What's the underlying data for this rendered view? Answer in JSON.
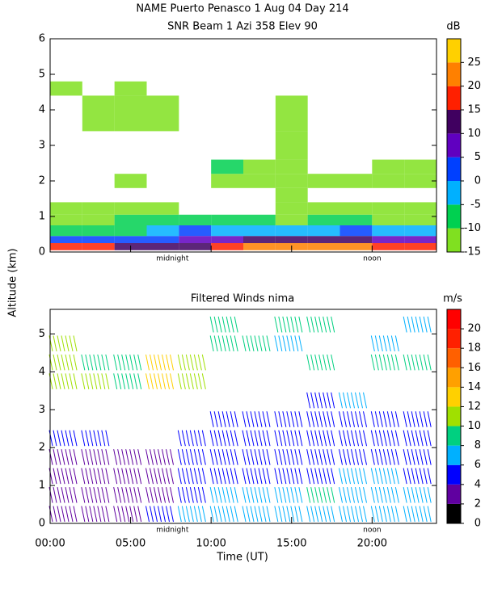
{
  "chart_data": [
    {
      "type": "heatmap",
      "title": "NAME Puerto Penasco    1 Aug 04 Day 214",
      "subtitle": "SNR Beam 1 Azi 358 Elev 90",
      "ylabel": "Altitude (km)",
      "colorbar_label": "dB",
      "xlim": [
        0,
        24
      ],
      "xticks": [
        0,
        5,
        10,
        15,
        20
      ],
      "ylim": [
        0,
        6
      ],
      "yticks": [
        0,
        1,
        2,
        3,
        4,
        5,
        6
      ],
      "annotations": [
        {
          "x": 7.6,
          "text": "midnight"
        },
        {
          "x": 20,
          "text": "noon"
        }
      ],
      "xbins": [
        0,
        2,
        4,
        6,
        8,
        10,
        12,
        14,
        16,
        18,
        20,
        22,
        24
      ],
      "ybins": [
        0.05,
        0.25,
        0.45,
        0.75,
        1.05,
        1.4,
        1.8,
        2.2,
        2.6,
        3.4,
        4.4,
        4.8
      ],
      "values": [
        [
          17,
          15,
          12,
          10,
          14,
          18,
          20,
          20,
          22,
          22,
          18,
          15
        ],
        [
          3,
          3,
          2,
          4,
          5,
          8,
          10,
          10,
          12,
          12,
          8,
          6
        ],
        [
          -8,
          -8,
          -6,
          -5,
          0,
          -2,
          -5,
          -5,
          -2,
          0,
          -3,
          -5
        ],
        [
          -12,
          -12,
          -10,
          -8,
          -10,
          -10,
          -10,
          -12,
          -10,
          -10,
          -12,
          -12
        ],
        [
          -12,
          -12,
          -14,
          -14,
          null,
          null,
          null,
          -14,
          -13,
          -13,
          -14,
          -14
        ],
        [
          null,
          null,
          null,
          null,
          null,
          null,
          null,
          -14,
          null,
          null,
          null,
          null
        ],
        [
          null,
          null,
          -13,
          null,
          null,
          -12,
          -13,
          -12,
          -12,
          -13,
          -12,
          -13
        ],
        [
          null,
          null,
          null,
          null,
          null,
          -8,
          -11,
          -12,
          null,
          null,
          -13,
          -13
        ],
        [
          null,
          null,
          null,
          null,
          null,
          null,
          null,
          -14,
          null,
          null,
          null,
          null
        ],
        [
          null,
          -13,
          -13,
          -12,
          null,
          null,
          null,
          -13,
          null,
          null,
          null,
          null
        ],
        [
          -12,
          null,
          -14,
          null,
          null,
          null,
          null,
          null,
          null,
          null,
          null,
          null
        ]
      ],
      "colorbar_lim": [
        -15,
        30
      ],
      "colorbar_ticks": [
        -15,
        -10,
        -5,
        0,
        5,
        10,
        15,
        20,
        25
      ],
      "colors": [
        "#80e020",
        "#00d050",
        "#00b0ff",
        "#0040ff",
        "#6000c0",
        "#400060",
        "#ff2000",
        "#ff8000",
        "#ffd000"
      ]
    },
    {
      "type": "barbs",
      "title": "Filtered Winds nima",
      "xlabel": "Time (UT)",
      "colorbar_label": "m/s",
      "xlim": [
        0,
        24
      ],
      "xticks": [
        {
          "value": 0,
          "label": "00:00"
        },
        {
          "value": 5,
          "label": "05:00"
        },
        {
          "value": 10,
          "label": "10:00"
        },
        {
          "value": 15,
          "label": "15:00"
        },
        {
          "value": 20,
          "label": "20:00"
        }
      ],
      "ylim": [
        0,
        5.65
      ],
      "yticks": [
        0,
        1,
        2,
        3,
        4,
        5
      ],
      "annotations": [
        {
          "x": 7.6,
          "text": "midnight"
        },
        {
          "x": 20,
          "text": "noon"
        }
      ],
      "xbins": [
        0,
        2,
        4,
        6,
        8,
        10,
        12,
        14,
        16,
        18,
        20,
        22,
        24
      ],
      "ybins": [
        0,
        0.5,
        1,
        1.5,
        2,
        2.5,
        3,
        3.5,
        4,
        4.5,
        5,
        5.5
      ],
      "values": [
        [
          3,
          3,
          3,
          4,
          6,
          7,
          7,
          7,
          7,
          7,
          6,
          6
        ],
        [
          3,
          3,
          3,
          3,
          5,
          6,
          6,
          7,
          8,
          7,
          6,
          6
        ],
        [
          3,
          3,
          3,
          3,
          4,
          5,
          5,
          5,
          5,
          6,
          6,
          5
        ],
        [
          3,
          3,
          3,
          3,
          4,
          4,
          4,
          4,
          4,
          4,
          4,
          4
        ],
        [
          5,
          4,
          null,
          null,
          4,
          4,
          4,
          4,
          4,
          4,
          4,
          4
        ],
        [
          null,
          null,
          null,
          null,
          null,
          4,
          4,
          5,
          4,
          4,
          4,
          4
        ],
        [
          null,
          null,
          null,
          null,
          null,
          null,
          null,
          null,
          5,
          6,
          null,
          null
        ],
        [
          10,
          10,
          8,
          12,
          10,
          null,
          null,
          null,
          null,
          null,
          null,
          null
        ],
        [
          11,
          9,
          9,
          13,
          10,
          null,
          null,
          null,
          9,
          null,
          8,
          8
        ],
        [
          11,
          null,
          null,
          null,
          null,
          8,
          9,
          7,
          null,
          null,
          7,
          null
        ],
        [
          null,
          null,
          null,
          null,
          null,
          9,
          null,
          9,
          8,
          null,
          null,
          6
        ]
      ],
      "colorbar_lim": [
        0,
        22
      ],
      "colorbar_ticks": [
        0,
        2,
        4,
        6,
        8,
        10,
        12,
        14,
        16,
        18,
        20
      ],
      "colors": [
        "#000000",
        "#6000a0",
        "#0000ff",
        "#00b0ff",
        "#00d080",
        "#a0e000",
        "#ffd000",
        "#ffa000",
        "#ff6000",
        "#ff2000",
        "#ff0000"
      ]
    }
  ]
}
